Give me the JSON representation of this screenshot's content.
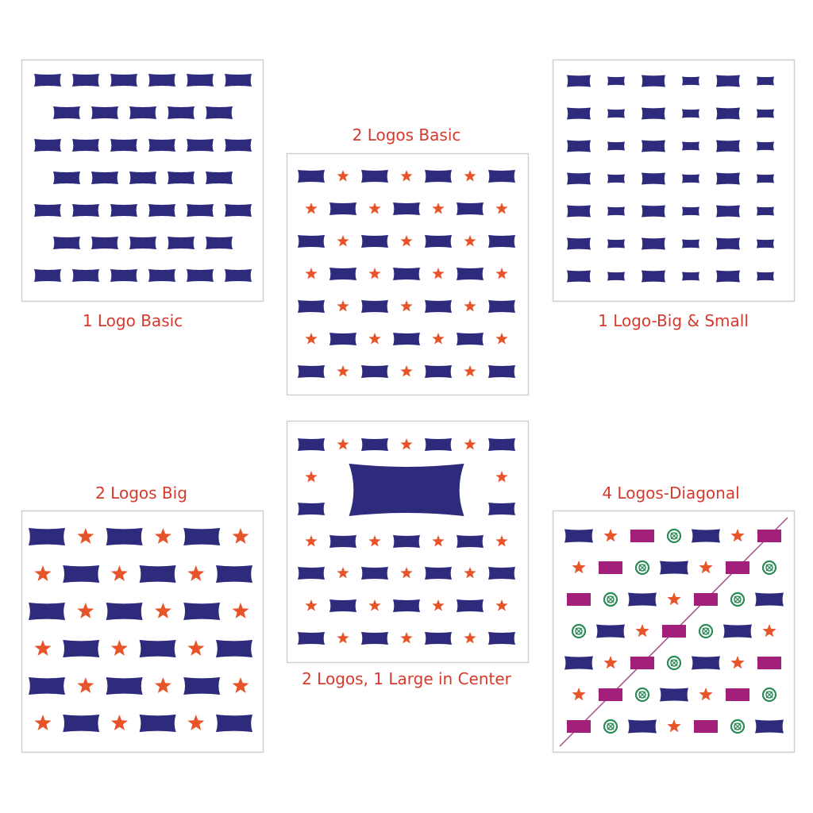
{
  "colors": {
    "logo": "#2e2a7c",
    "star": "#e8542a",
    "rect_logo": "#a3207a",
    "target_logo": "#2e8b57",
    "label": "#d63a2c",
    "panel_border": "#cfcfcf",
    "diagonal_line": "#a3508a"
  },
  "panels": [
    {
      "label": "1 Logo Basic"
    },
    {
      "label": "2 Logos Basic"
    },
    {
      "label": "1 Logo-Big & Small"
    },
    {
      "label": "2 Logos Big"
    },
    {
      "label": "2 Logos, 1 Large in Center"
    },
    {
      "label": "4 Logos-Diagonal"
    }
  ]
}
